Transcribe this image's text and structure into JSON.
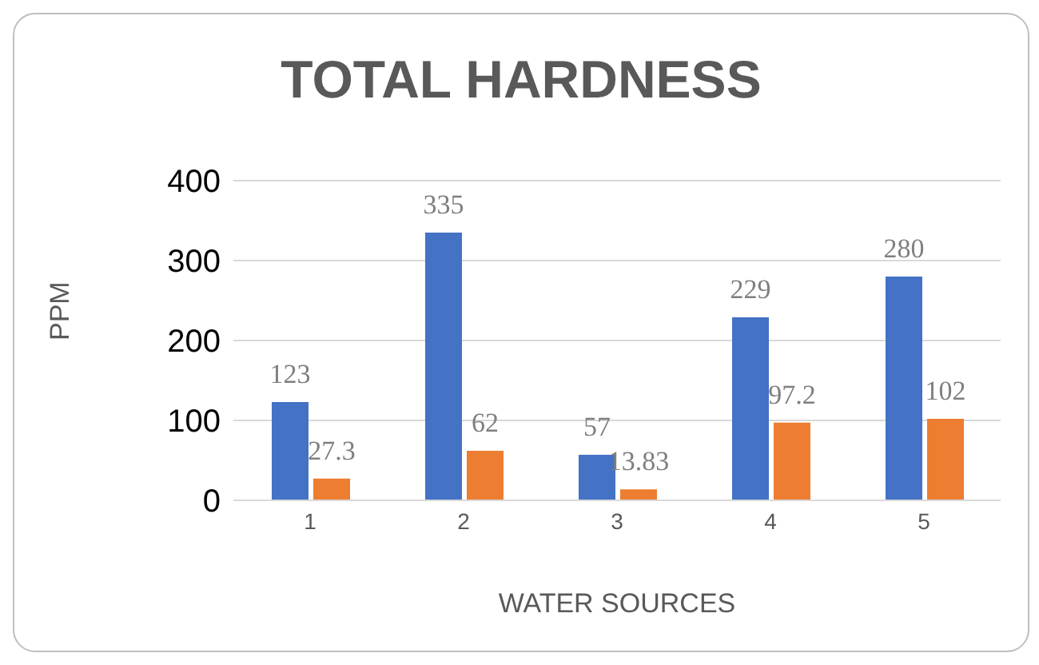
{
  "chart_data": {
    "type": "bar",
    "title": "TOTAL HARDNESS",
    "xlabel": "WATER SOURCES",
    "ylabel": "PPM",
    "categories": [
      "1",
      "2",
      "3",
      "4",
      "5"
    ],
    "series": [
      {
        "color": "#4472c4",
        "values": [
          123,
          335,
          57,
          229,
          280
        ]
      },
      {
        "color": "#ed7d31",
        "values": [
          27.3,
          62,
          13.83,
          97.2,
          102
        ]
      }
    ],
    "ylim": [
      0,
      400
    ],
    "yticks": [
      0,
      100,
      200,
      300,
      400
    ],
    "grid": "y",
    "data_labels": true,
    "legend": false
  }
}
